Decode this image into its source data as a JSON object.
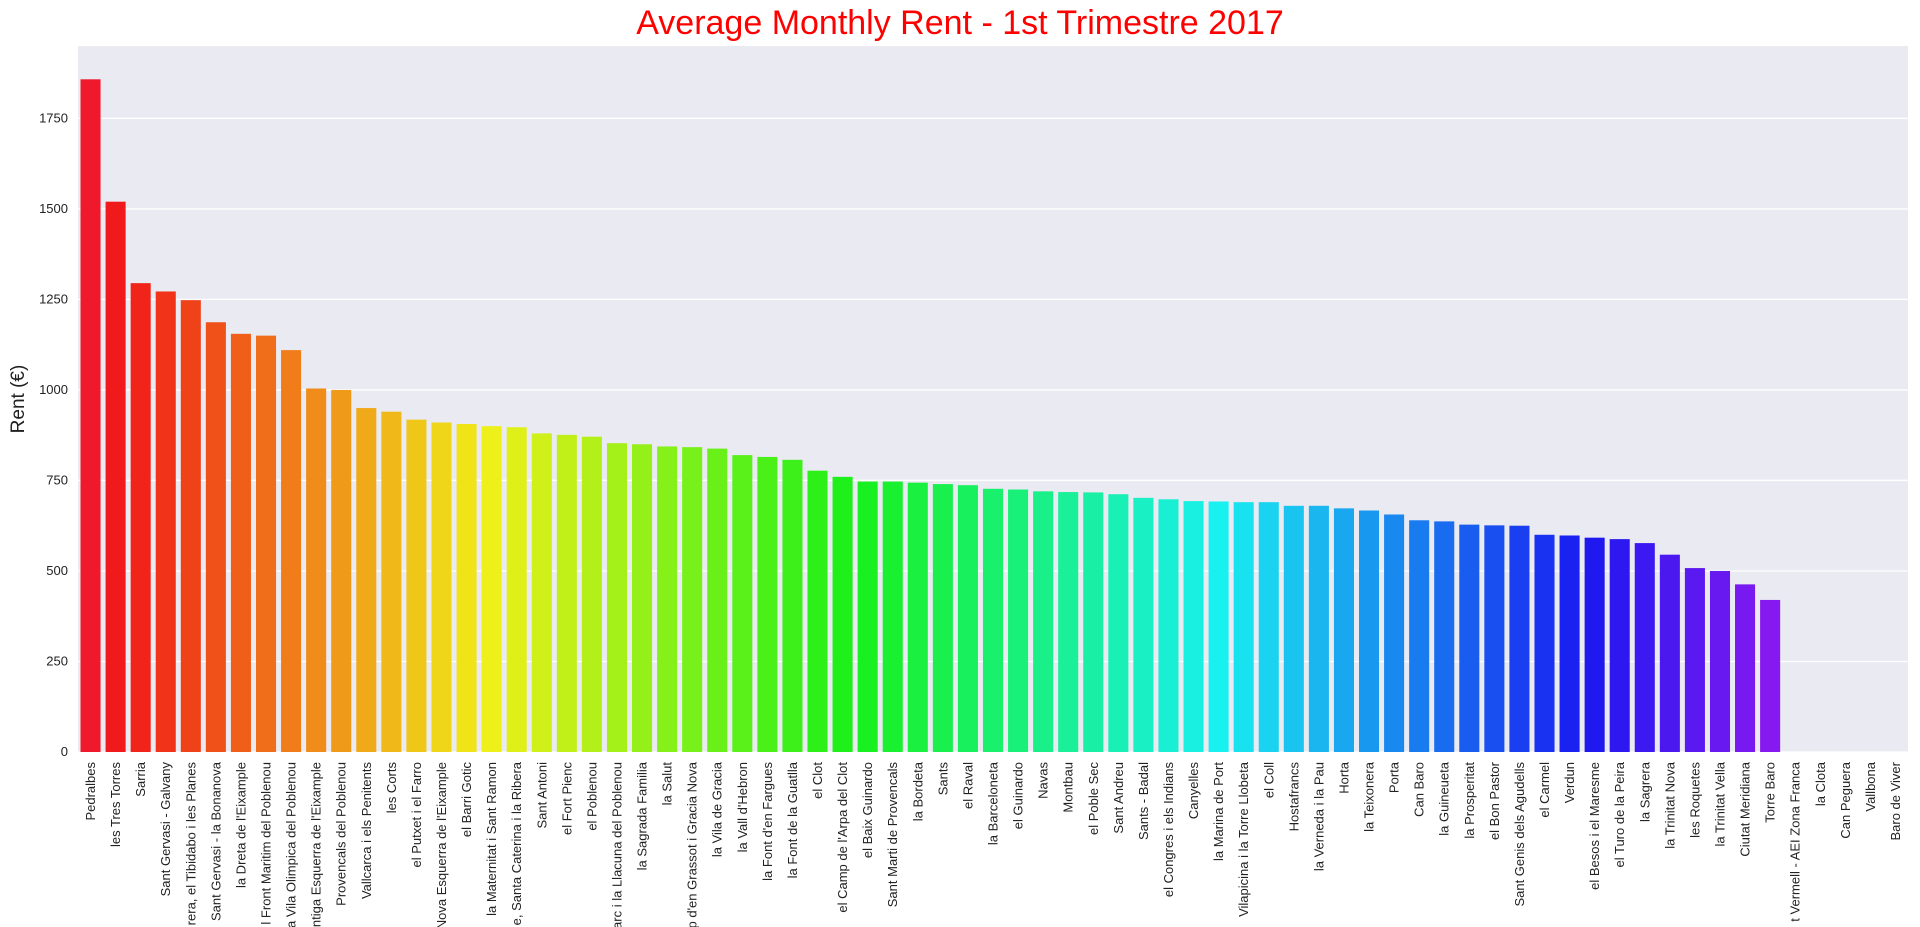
{
  "chart_data": {
    "type": "bar",
    "title": "Average Monthly Rent - 1st Trimestre 2017",
    "title_color": "#ff0000",
    "xlabel": "",
    "ylabel": "Rent (€)",
    "ylim": [
      0,
      1950
    ],
    "yticks": [
      0,
      250,
      500,
      750,
      1000,
      1250,
      1500,
      1750
    ],
    "grid": true,
    "plot_background": "#eaeaf2",
    "grid_color": "#ffffff",
    "palette": "hsv",
    "categories": [
      "Pedralbes",
      "les Tres Torres",
      "Sarria",
      "Sant Gervasi - Galvany",
      "rera, el Tibidabo i les Planes",
      "Sant Gervasi - la Bonanova",
      "la Dreta de l'Eixample",
      "l Front Maritim del Poblenou",
      "a Vila Olimpica del Poblenou",
      "ntiga Esquerra de l'Eixample",
      "Provencals del Poblenou",
      "Vallcarca i els Penitents",
      "les Corts",
      "el Putxet i el Farro",
      "Nova Esquerra de l'Eixample",
      "el Barri Gotic",
      "la Maternitat i Sant Ramon",
      "e, Santa Caterina i la Ribera",
      "Sant Antoni",
      "el Fort Pienc",
      "el Poblenou",
      "arc i la Llacuna del Poblenou",
      "la Sagrada Familia",
      "la Salut",
      "p d'en Grassot i Gracia Nova",
      "la Vila de Gracia",
      "la Vall d'Hebron",
      "la Font d'en Fargues",
      "la Font de la Guatlla",
      "el Clot",
      "el Camp de l'Arpa del Clot",
      "el Baix Guinardo",
      "Sant Marti de Provencals",
      "la Bordeta",
      "Sants",
      "el Raval",
      "la Barceloneta",
      "el Guinardo",
      "Navas",
      "Montbau",
      "el Poble Sec",
      "Sant Andreu",
      "Sants - Badal",
      "el Congres i els Indians",
      "Canyelles",
      "la Marina de Port",
      "Vilapicina i la Torre Llobeta",
      "el Coll",
      "Hostafrancs",
      "la Verneda i la Pau",
      "Horta",
      "la Teixonera",
      "Porta",
      "Can Baro",
      "la Guineueta",
      "la Prosperitat",
      "el Bon Pastor",
      "Sant Genis dels Agudells",
      "el Carmel",
      "Verdun",
      "el Besos i el Maresme",
      "el Turo de la Peira",
      "la Sagrera",
      "la Trinitat Nova",
      "les Roquetes",
      "la Trinitat Vella",
      "Ciutat Meridiana",
      "Torre Baro",
      "t Vermell - AEI Zona Franca",
      "la Clota",
      "Can Peguera",
      "Vallbona",
      "Baro de Viver"
    ],
    "values": [
      1858,
      1520,
      1295,
      1272,
      1248,
      1187,
      1155,
      1150,
      1110,
      1004,
      1000,
      950,
      940,
      918,
      910,
      906,
      900,
      897,
      880,
      876,
      871,
      853,
      850,
      844,
      842,
      838,
      820,
      815,
      807,
      777,
      760,
      747,
      747,
      744,
      740,
      737,
      727,
      725,
      720,
      718,
      717,
      712,
      702,
      698,
      693,
      692,
      690,
      690,
      680,
      680,
      673,
      667,
      656,
      640,
      637,
      628,
      626,
      625,
      600,
      598,
      592,
      588,
      577,
      545,
      508,
      500,
      463,
      420,
      0,
      0,
      0,
      0,
      0
    ]
  }
}
